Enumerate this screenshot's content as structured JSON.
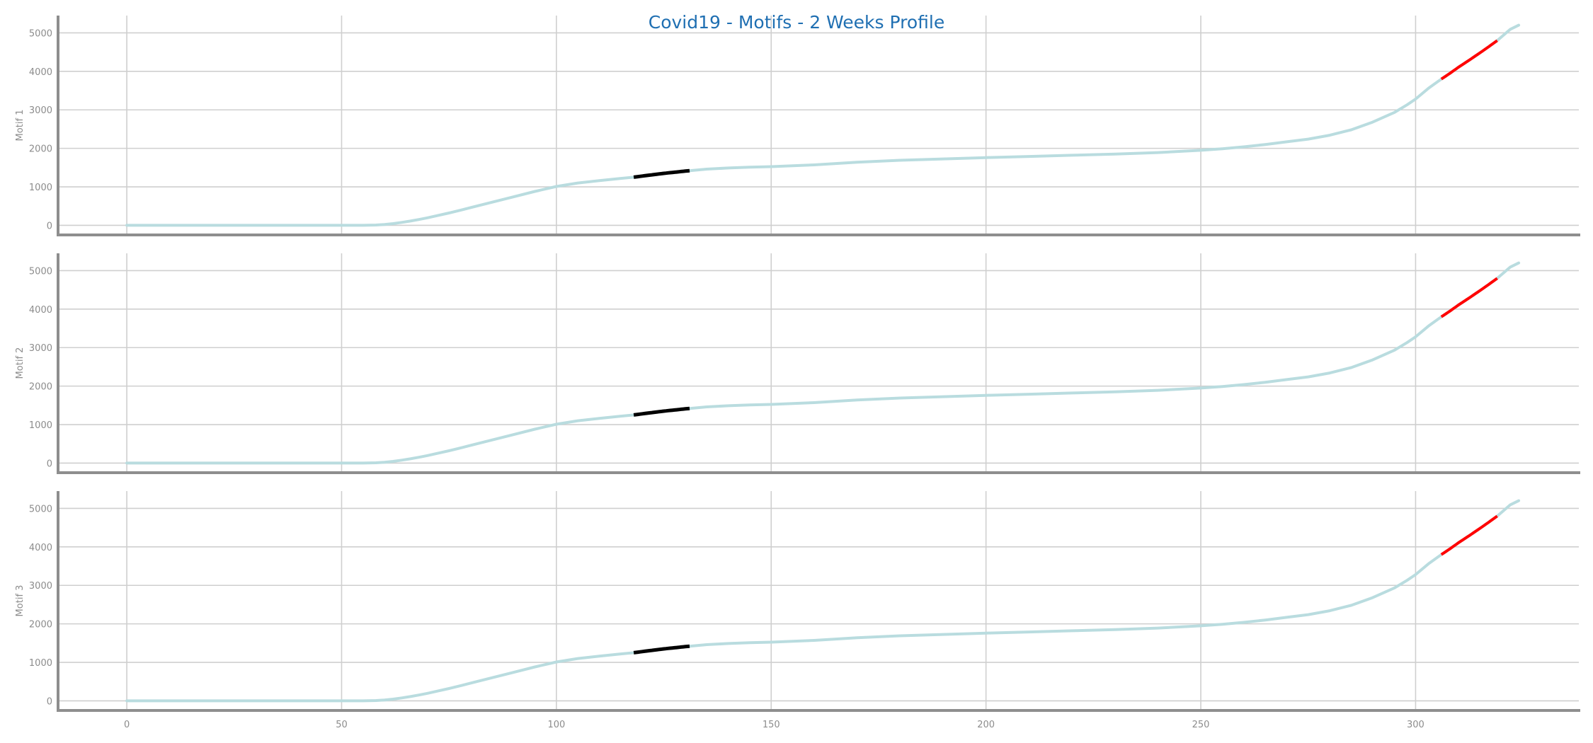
{
  "colors": {
    "series": "#b9dcdf",
    "motif": "#000000",
    "match": "#ff0000",
    "title": "#1f6fb2",
    "grid": "#cfcfcf",
    "spine": "#8e8e8e",
    "tick_text": "#8c8c8c"
  },
  "chart_data": {
    "type": "line",
    "title": "Covid19 - Motifs - 2 Weeks Profile",
    "grid": true,
    "sharex": true,
    "xlim": [
      -16,
      338
    ],
    "ylim": [
      -250,
      5450
    ],
    "xticks": [
      0,
      50,
      100,
      150,
      200,
      250,
      300
    ],
    "yticks": [
      0,
      1000,
      2000,
      3000,
      4000,
      5000
    ],
    "series_points": [
      [
        0,
        0
      ],
      [
        55,
        0
      ],
      [
        58,
        8
      ],
      [
        60,
        22
      ],
      [
        62,
        45
      ],
      [
        64,
        75
      ],
      [
        66,
        110
      ],
      [
        68,
        150
      ],
      [
        70,
        195
      ],
      [
        72,
        245
      ],
      [
        75,
        320
      ],
      [
        78,
        400
      ],
      [
        80,
        460
      ],
      [
        85,
        600
      ],
      [
        90,
        740
      ],
      [
        95,
        880
      ],
      [
        100,
        1010
      ],
      [
        105,
        1100
      ],
      [
        110,
        1160
      ],
      [
        115,
        1220
      ],
      [
        118,
        1250
      ],
      [
        120,
        1280
      ],
      [
        125,
        1350
      ],
      [
        131,
        1420
      ],
      [
        135,
        1460
      ],
      [
        140,
        1490
      ],
      [
        145,
        1510
      ],
      [
        150,
        1525
      ],
      [
        160,
        1570
      ],
      [
        170,
        1640
      ],
      [
        180,
        1690
      ],
      [
        190,
        1725
      ],
      [
        200,
        1760
      ],
      [
        210,
        1790
      ],
      [
        220,
        1820
      ],
      [
        230,
        1850
      ],
      [
        240,
        1890
      ],
      [
        250,
        1950
      ],
      [
        255,
        1990
      ],
      [
        260,
        2040
      ],
      [
        265,
        2100
      ],
      [
        270,
        2170
      ],
      [
        275,
        2240
      ],
      [
        280,
        2340
      ],
      [
        285,
        2480
      ],
      [
        290,
        2680
      ],
      [
        295,
        2930
      ],
      [
        298,
        3130
      ],
      [
        300,
        3280
      ],
      [
        303,
        3560
      ],
      [
        306,
        3800
      ],
      [
        308,
        3950
      ],
      [
        310,
        4110
      ],
      [
        313,
        4330
      ],
      [
        316,
        4560
      ],
      [
        319,
        4800
      ],
      [
        322,
        5090
      ],
      [
        324,
        5200
      ]
    ],
    "panels": [
      {
        "ylabel": "Motif 1",
        "motif_range": [
          118,
          131
        ],
        "match_range": [
          306,
          319
        ]
      },
      {
        "ylabel": "Motif 2",
        "motif_range": [
          118,
          131
        ],
        "match_range": [
          306,
          319
        ]
      },
      {
        "ylabel": "Motif 3",
        "motif_range": [
          118,
          131
        ],
        "match_range": [
          306,
          319
        ]
      }
    ]
  }
}
